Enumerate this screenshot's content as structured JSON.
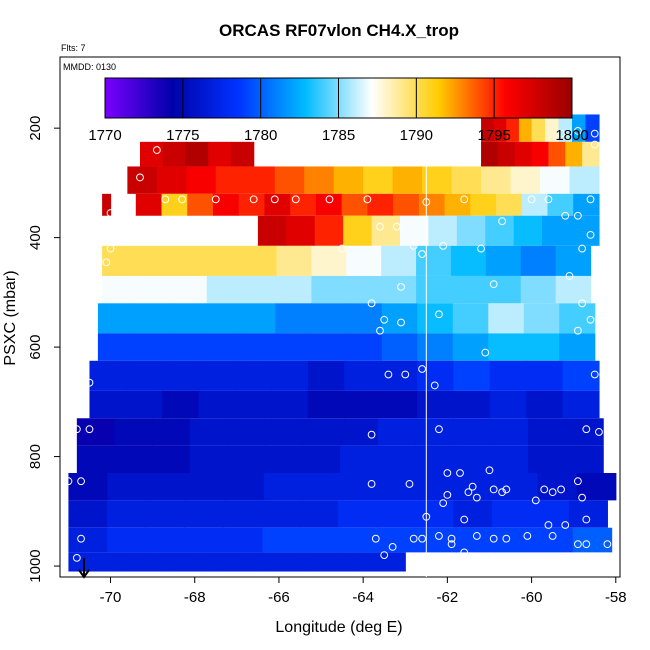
{
  "chart_data": {
    "type": "heatmap",
    "title": "ORCAS RF07vlon CH4.X_trop",
    "flts_label": "Flts: 7",
    "mmdd_label": "MMDD: 0130",
    "xlabel": "Longitude (deg E)",
    "ylabel": "PSXC (mbar)",
    "xlim": [
      -71.2,
      -57.9
    ],
    "ylim": [
      1020,
      70
    ],
    "y_reversed": true,
    "xticks": [
      -70,
      -68,
      -66,
      -64,
      -62,
      -60,
      -58
    ],
    "yticks": [
      200,
      400,
      600,
      800,
      1000
    ],
    "colorbar": {
      "min": 1770,
      "max": 1800,
      "ticks": [
        1770,
        1775,
        1780,
        1785,
        1790,
        1795,
        1800
      ],
      "stops": [
        "#7a00ff",
        "#0000aa",
        "#0033ff",
        "#00bbff",
        "#ffffff",
        "#ffcc00",
        "#ff0000",
        "#990000"
      ]
    },
    "reference_line_x": -62.5,
    "rows": [
      {
        "p_top": 175,
        "p_bot": 225,
        "segments": [
          {
            "x0": -61.2,
            "x1": -60.0,
            "v": [
              1798,
              1797,
              1795,
              1792
            ]
          },
          {
            "x0": -60.0,
            "x1": -58.4,
            "v": [
              1790,
              1788,
              1786,
              1782,
              1779
            ]
          }
        ]
      },
      {
        "p_top": 225,
        "p_bot": 270,
        "segments": [
          {
            "x0": -69.3,
            "x1": -66.6,
            "v": [
              1797,
              1798,
              1799,
              1797,
              1798
            ]
          },
          {
            "x0": -61.2,
            "x1": -58.4,
            "v": [
              1799,
              1798,
              1797,
              1796,
              1794,
              1792,
              1789
            ]
          }
        ]
      },
      {
        "p_top": 270,
        "p_bot": 320,
        "segments": [
          {
            "x0": -69.6,
            "x1": -58.4,
            "v": [
              1798,
              1797,
              1796,
              1795,
              1795,
              1794,
              1793,
              1792,
              1791,
              1792,
              1791,
              1790,
              1789,
              1788,
              1787,
              1786
            ]
          }
        ]
      },
      {
        "p_top": 320,
        "p_bot": 360,
        "segments": [
          {
            "x0": -70.2,
            "x1": -70.0,
            "v": [
              1798
            ]
          },
          {
            "x0": -69.4,
            "x1": -58.4,
            "v": [
              1797,
              1791,
              1794,
              1796,
              1795,
              1797,
              1795,
              1796,
              1794,
              1795,
              1794,
              1793,
              1792,
              1791,
              1790,
              1786,
              1784,
              1782
            ]
          }
        ]
      },
      {
        "p_top": 360,
        "p_bot": 415,
        "segments": [
          {
            "x0": -66.5,
            "x1": -58.4,
            "v": [
              1798,
              1797,
              1795,
              1791,
              1789,
              1787,
              1786,
              1785,
              1784,
              1783,
              1782,
              1782
            ]
          }
        ]
      },
      {
        "p_top": 415,
        "p_bot": 470,
        "segments": [
          {
            "x0": -70.2,
            "x1": -58.6,
            "v": [
              1790,
              1790,
              1790,
              1790,
              1790,
              1789,
              1788,
              1787,
              1786,
              1784,
              1783,
              1782,
              1781,
              1782
            ]
          }
        ]
      },
      {
        "p_top": 470,
        "p_bot": 520,
        "segments": [
          {
            "x0": -70.2,
            "x1": -58.6,
            "v": [
              1787,
              1787,
              1787,
              1786,
              1786,
              1786,
              1785,
              1785,
              1785,
              1784,
              1784,
              1784,
              1785,
              1786
            ]
          }
        ]
      },
      {
        "p_top": 520,
        "p_bot": 575,
        "segments": [
          {
            "x0": -70.3,
            "x1": -58.5,
            "v": [
              1782,
              1782,
              1782,
              1782,
              1782,
              1781,
              1781,
              1781,
              1782,
              1783,
              1784,
              1786,
              1785,
              1784
            ]
          }
        ]
      },
      {
        "p_top": 575,
        "p_bot": 625,
        "segments": [
          {
            "x0": -70.3,
            "x1": -58.5,
            "v": [
              1779,
              1779,
              1779,
              1779,
              1779,
              1779,
              1779,
              1779,
              1780,
              1781,
              1782,
              1783,
              1783,
              1782
            ]
          }
        ]
      },
      {
        "p_top": 625,
        "p_bot": 680,
        "segments": [
          {
            "x0": -70.5,
            "x1": -58.4,
            "v": [
              1777,
              1777,
              1777,
              1777,
              1777,
              1777,
              1776,
              1777,
              1777,
              1778,
              1779,
              1778,
              1778,
              1779
            ]
          }
        ]
      },
      {
        "p_top": 680,
        "p_bot": 730,
        "segments": [
          {
            "x0": -70.5,
            "x1": -58.4,
            "v": [
              1776,
              1776,
              1775,
              1776,
              1776,
              1776,
              1775,
              1775,
              1775,
              1776,
              1776,
              1777,
              1776,
              1777
            ]
          }
        ]
      },
      {
        "p_top": 730,
        "p_bot": 780,
        "segments": [
          {
            "x0": -70.8,
            "x1": -58.3,
            "v": [
              1774,
              1775,
              1775,
              1776,
              1776,
              1776,
              1776,
              1776,
              1777,
              1777,
              1777,
              1777,
              1776,
              1776
            ]
          }
        ]
      },
      {
        "p_top": 780,
        "p_bot": 830,
        "segments": [
          {
            "x0": -70.8,
            "x1": -58.3,
            "v": [
              1775,
              1775,
              1775,
              1776,
              1776,
              1776,
              1776,
              1777,
              1777,
              1777,
              1777,
              1777,
              1776,
              1776
            ]
          }
        ]
      },
      {
        "p_top": 830,
        "p_bot": 880,
        "segments": [
          {
            "x0": -71.0,
            "x1": -58.0,
            "v": [
              1775,
              1776,
              1776,
              1776,
              1776,
              1777,
              1777,
              1777,
              1777,
              1777,
              1777,
              1777,
              1776,
              1775
            ]
          }
        ]
      },
      {
        "p_top": 880,
        "p_bot": 930,
        "segments": [
          {
            "x0": -71.0,
            "x1": -58.2,
            "v": [
              1776,
              1777,
              1777,
              1777,
              1777,
              1777,
              1777,
              1778,
              1778,
              1778,
              1777,
              1778,
              1778,
              1777
            ]
          }
        ]
      },
      {
        "p_top": 930,
        "p_bot": 975,
        "segments": [
          {
            "x0": -71.0,
            "x1": -58.1,
            "v": [
              1777,
              1778,
              1778,
              1778,
              1778,
              1779,
              1779,
              1779,
              1779,
              1779,
              1779,
              1779,
              1779,
              1780
            ]
          }
        ]
      },
      {
        "p_top": 975,
        "p_bot": 1010,
        "segments": [
          {
            "x0": -71.0,
            "x1": -63.0,
            "v": [
              1777,
              1777,
              1777,
              1777,
              1777,
              1777,
              1777
            ]
          }
        ]
      }
    ],
    "points": [
      [
        -68.9,
        240
      ],
      [
        -69.3,
        290
      ],
      [
        -70.0,
        355
      ],
      [
        -69.5,
        330
      ],
      [
        -68.7,
        330
      ],
      [
        -68.3,
        330
      ],
      [
        -67.5,
        330
      ],
      [
        -66.6,
        330
      ],
      [
        -66.1,
        330
      ],
      [
        -65.6,
        330
      ],
      [
        -64.8,
        330
      ],
      [
        -63.9,
        330
      ],
      [
        -63.6,
        380
      ],
      [
        -63.2,
        380
      ],
      [
        -62.5,
        335
      ],
      [
        -61.6,
        330
      ],
      [
        -60.7,
        370
      ],
      [
        -60.0,
        330
      ],
      [
        -59.6,
        330
      ],
      [
        -59.3,
        210
      ],
      [
        -58.9,
        205
      ],
      [
        -58.5,
        210
      ],
      [
        -58.5,
        230
      ],
      [
        -58.6,
        330
      ],
      [
        -59.2,
        360
      ],
      [
        -58.9,
        360
      ],
      [
        -58.6,
        395
      ],
      [
        -58.8,
        420
      ],
      [
        -58.4,
        430
      ],
      [
        -62.8,
        415
      ],
      [
        -62.6,
        430
      ],
      [
        -62.1,
        415
      ],
      [
        -61.2,
        420
      ],
      [
        -60.9,
        485
      ],
      [
        -59.1,
        470
      ],
      [
        -63.1,
        490
      ],
      [
        -64.5,
        420
      ],
      [
        -70.0,
        420
      ],
      [
        -70.1,
        445
      ],
      [
        -70.4,
        550
      ],
      [
        -70.4,
        555
      ],
      [
        -63.8,
        520
      ],
      [
        -63.5,
        550
      ],
      [
        -63.6,
        570
      ],
      [
        -63.1,
        555
      ],
      [
        -62.2,
        540
      ],
      [
        -58.8,
        520
      ],
      [
        -58.6,
        550
      ],
      [
        -58.9,
        570
      ],
      [
        -61.1,
        610
      ],
      [
        -63.4,
        650
      ],
      [
        -63.0,
        650
      ],
      [
        -62.6,
        640
      ],
      [
        -62.3,
        670
      ],
      [
        -58.5,
        650
      ],
      [
        -58.3,
        650
      ],
      [
        -70.6,
        640
      ],
      [
        -70.5,
        665
      ],
      [
        -70.8,
        750
      ],
      [
        -70.5,
        750
      ],
      [
        -63.8,
        760
      ],
      [
        -62.2,
        750
      ],
      [
        -58.7,
        750
      ],
      [
        -58.4,
        755
      ],
      [
        -71.0,
        845
      ],
      [
        -70.7,
        845
      ],
      [
        -63.8,
        850
      ],
      [
        -62.9,
        850
      ],
      [
        -62.0,
        830
      ],
      [
        -61.7,
        830
      ],
      [
        -61.5,
        865
      ],
      [
        -61.0,
        825
      ],
      [
        -61.4,
        855
      ],
      [
        -62.0,
        870
      ],
      [
        -62.1,
        885
      ],
      [
        -61.3,
        875
      ],
      [
        -60.9,
        860
      ],
      [
        -60.6,
        860
      ],
      [
        -60.7,
        865
      ],
      [
        -59.9,
        880
      ],
      [
        -59.7,
        860
      ],
      [
        -59.5,
        865
      ],
      [
        -59.3,
        860
      ],
      [
        -58.9,
        845
      ],
      [
        -58.8,
        875
      ],
      [
        -62.5,
        910
      ],
      [
        -61.6,
        915
      ],
      [
        -59.6,
        925
      ],
      [
        -59.2,
        925
      ],
      [
        -58.7,
        915
      ],
      [
        -70.7,
        950
      ],
      [
        -63.7,
        950
      ],
      [
        -63.3,
        965
      ],
      [
        -62.8,
        950
      ],
      [
        -62.6,
        950
      ],
      [
        -62.2,
        945
      ],
      [
        -61.9,
        950
      ],
      [
        -61.3,
        945
      ],
      [
        -61.6,
        975
      ],
      [
        -61.9,
        960
      ],
      [
        -60.9,
        950
      ],
      [
        -60.6,
        950
      ],
      [
        -60.1,
        945
      ],
      [
        -59.5,
        945
      ],
      [
        -58.9,
        960
      ],
      [
        -58.7,
        960
      ],
      [
        -58.2,
        960
      ],
      [
        -63.5,
        980
      ],
      [
        -70.8,
        985
      ]
    ]
  }
}
